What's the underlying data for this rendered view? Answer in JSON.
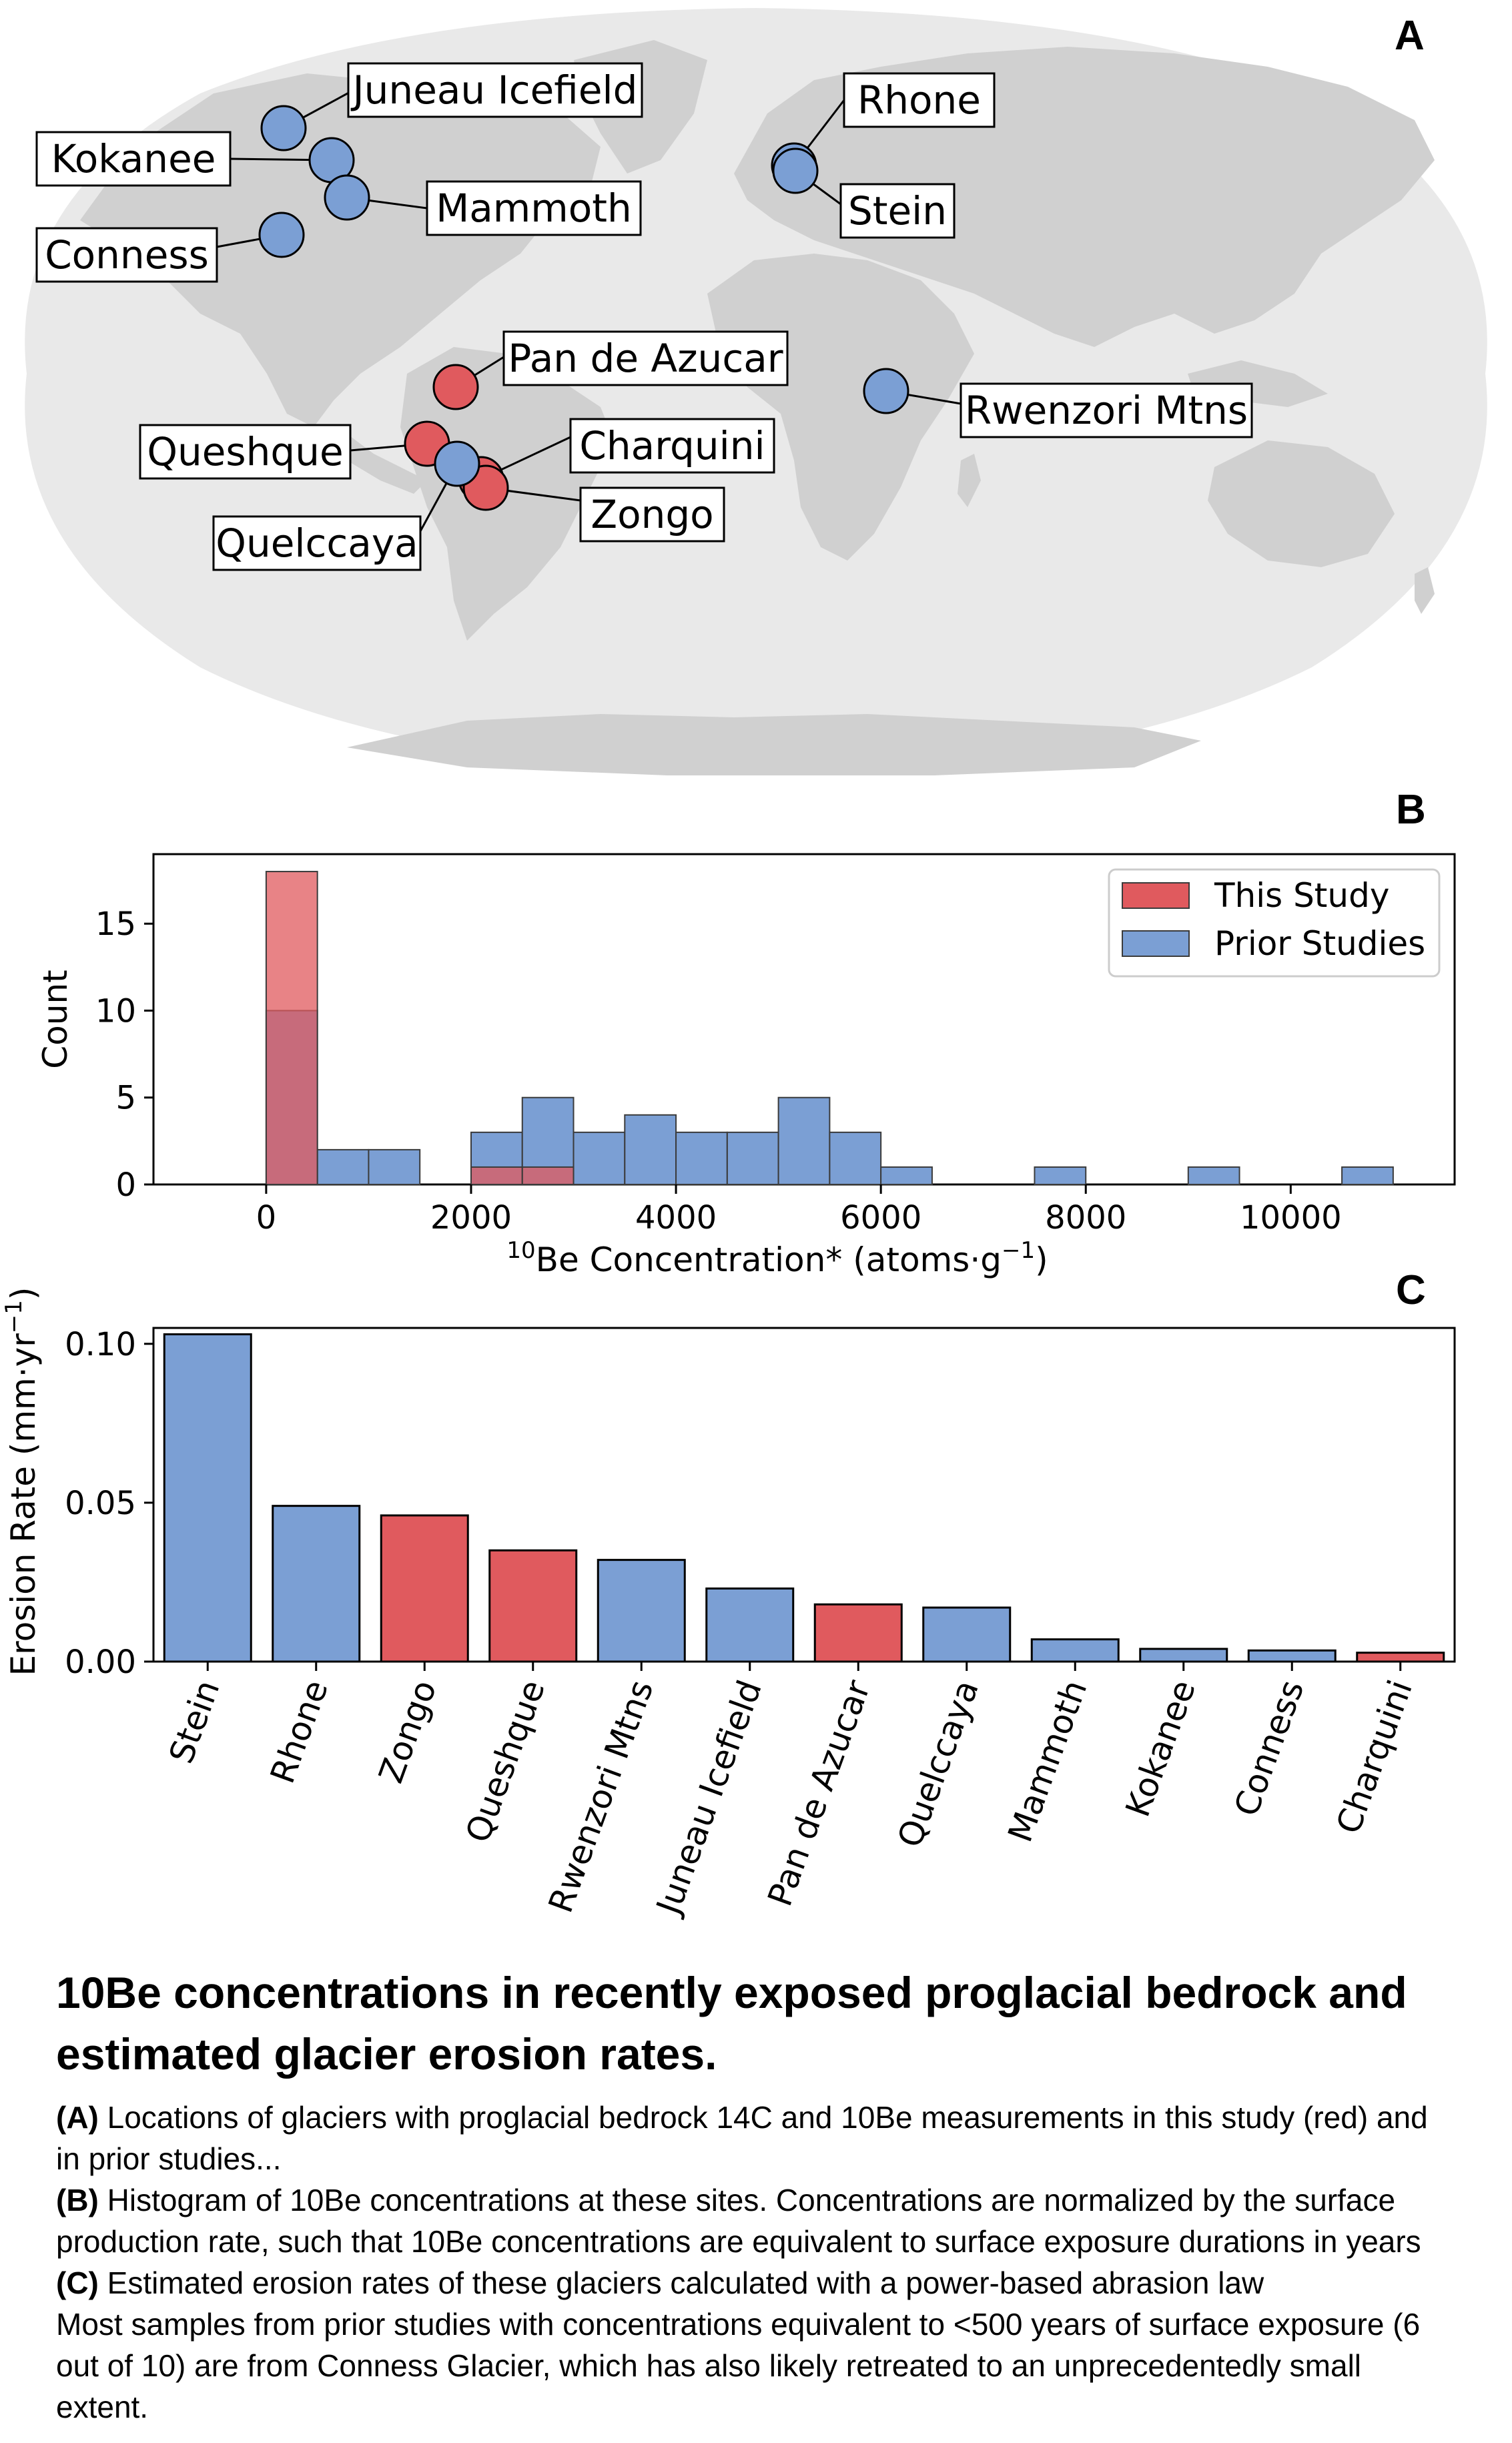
{
  "panels": {
    "a": "A",
    "b": "B",
    "c": "C"
  },
  "colors": {
    "this_study": "#e05a5e",
    "prior": "#7b9fd4",
    "land": "#d0d0d0",
    "ocean": "#e9e9e9"
  },
  "chart_data": [
    {
      "type": "map",
      "panel": "A",
      "sites": [
        {
          "name": "Juneau Icefield",
          "group": "prior"
        },
        {
          "name": "Kokanee",
          "group": "prior"
        },
        {
          "name": "Mammoth",
          "group": "prior"
        },
        {
          "name": "Conness",
          "group": "prior"
        },
        {
          "name": "Rhone",
          "group": "prior"
        },
        {
          "name": "Stein",
          "group": "prior"
        },
        {
          "name": "Pan de Azucar",
          "group": "this_study"
        },
        {
          "name": "Rwenzori Mtns",
          "group": "prior"
        },
        {
          "name": "Queshque",
          "group": "this_study"
        },
        {
          "name": "Charquini",
          "group": "this_study"
        },
        {
          "name": "Zongo",
          "group": "this_study"
        },
        {
          "name": "Quelccaya",
          "group": "prior"
        }
      ]
    },
    {
      "type": "histogram",
      "panel": "B",
      "xlabel_sup": "10",
      "xlabel_main": "Be Concentration* (atoms·g",
      "xlabel_exp": "−1",
      "xlabel_close": ")",
      "ylabel": "Count",
      "xlim": [
        -1100,
        11600
      ],
      "ylim": [
        0,
        19
      ],
      "xticks": [
        0,
        2000,
        4000,
        6000,
        8000,
        10000
      ],
      "yticks": [
        0,
        5,
        10,
        15
      ],
      "bin_width": 500,
      "legend": {
        "position": "upper right",
        "entries": [
          "This Study",
          "Prior Studies"
        ]
      },
      "series": [
        {
          "name": "Prior Studies",
          "bin_starts": [
            0,
            500,
            1000,
            2000,
            2500,
            3000,
            3500,
            4000,
            4500,
            5000,
            5500,
            6000,
            7500,
            9000,
            10500
          ],
          "counts": [
            10,
            2,
            2,
            3,
            5,
            3,
            4,
            3,
            3,
            5,
            3,
            1,
            1,
            1,
            1
          ]
        },
        {
          "name": "This Study",
          "bin_starts": [
            0,
            2000,
            2500
          ],
          "counts": [
            18,
            1,
            1
          ]
        }
      ]
    },
    {
      "type": "bar",
      "panel": "C",
      "ylabel_main": "Erosion Rate (mm·yr",
      "ylabel_exp": "−1",
      "ylabel_close": ")",
      "ylim": [
        0,
        0.105
      ],
      "yticks": [
        "0.00",
        "0.05",
        "0.10"
      ],
      "categories": [
        "Stein",
        "Rhone",
        "Zongo",
        "Queshque",
        "Rwenzori Mtns",
        "Juneau Icefield",
        "Pan de Azucar",
        "Quelccaya",
        "Mammoth",
        "Kokanee",
        "Conness",
        "Charquini"
      ],
      "values": [
        0.103,
        0.049,
        0.046,
        0.035,
        0.032,
        0.023,
        0.018,
        0.017,
        0.007,
        0.004,
        0.0035,
        0.0028
      ],
      "groups": [
        "prior",
        "prior",
        "this_study",
        "this_study",
        "prior",
        "prior",
        "this_study",
        "prior",
        "prior",
        "prior",
        "prior",
        "this_study"
      ]
    }
  ],
  "caption": {
    "title": "10Be concentrations in recently exposed proglacial bedrock and estimated glacier erosion rates.",
    "a_label": "(A)",
    "a_text": " Locations of glaciers with proglacial bedrock 14C and 10Be measurements in this study (red) and in prior studies...",
    "b_label": "(B)",
    "b_text": " Histogram of 10Be concentrations at these sites. Concentrations are normalized by the surface production rate, such that 10Be concentrations are equivalent to surface exposure durations in years",
    "c_label": "(C)",
    "c_text": " Estimated erosion rates of these glaciers calculated with a power-based abrasion law",
    "note": "Most samples from prior studies with concentrations equivalent to <500 years of surface exposure (6 out of 10) are from Conness Glacier, which has also likely retreated to an unprecedentedly small extent."
  }
}
